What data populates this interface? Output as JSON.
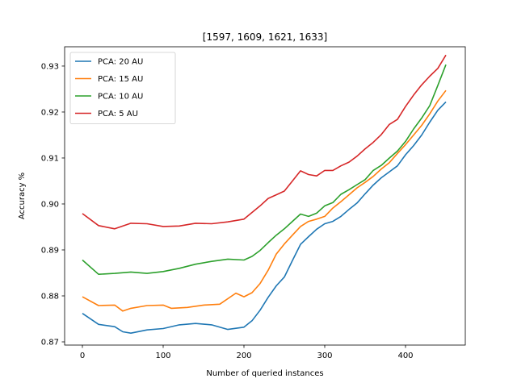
{
  "chart_data": {
    "type": "line",
    "title": "[1597, 1609, 1621, 1633]",
    "xlabel": "Number of queried instances",
    "ylabel": "Accuracy %",
    "xlim": [
      -22,
      474
    ],
    "ylim": [
      0.8693,
      0.9342
    ],
    "xticks": [
      0,
      100,
      200,
      300,
      400
    ],
    "yticks": [
      0.87,
      0.88,
      0.89,
      0.9,
      0.91,
      0.92,
      0.93
    ],
    "ytick_labels": [
      "0.87",
      "0.88",
      "0.89",
      "0.90",
      "0.91",
      "0.92",
      "0.93"
    ],
    "grid": false,
    "legend_position": "upper left",
    "series": [
      {
        "name": "PCA: 20 AU",
        "color": "#1f77b4",
        "points": [
          [
            0,
            0.8762
          ],
          [
            20,
            0.8738
          ],
          [
            40,
            0.8733
          ],
          [
            50,
            0.8722
          ],
          [
            60,
            0.8719
          ],
          [
            80,
            0.8726
          ],
          [
            100,
            0.8729
          ],
          [
            120,
            0.8737
          ],
          [
            140,
            0.874
          ],
          [
            160,
            0.8737
          ],
          [
            180,
            0.8727
          ],
          [
            200,
            0.8732
          ],
          [
            210,
            0.8746
          ],
          [
            220,
            0.8769
          ],
          [
            230,
            0.8797
          ],
          [
            240,
            0.8822
          ],
          [
            250,
            0.8841
          ],
          [
            260,
            0.8877
          ],
          [
            270,
            0.8912
          ],
          [
            280,
            0.8929
          ],
          [
            290,
            0.8945
          ],
          [
            300,
            0.8957
          ],
          [
            310,
            0.8962
          ],
          [
            320,
            0.8973
          ],
          [
            330,
            0.8988
          ],
          [
            340,
            0.9002
          ],
          [
            350,
            0.9022
          ],
          [
            360,
            0.9041
          ],
          [
            370,
            0.9057
          ],
          [
            380,
            0.907
          ],
          [
            390,
            0.9083
          ],
          [
            400,
            0.9107
          ],
          [
            410,
            0.9127
          ],
          [
            420,
            0.915
          ],
          [
            430,
            0.9178
          ],
          [
            440,
            0.9204
          ],
          [
            450,
            0.9222
          ]
        ]
      },
      {
        "name": "PCA: 15 AU",
        "color": "#ff7f0e",
        "points": [
          [
            0,
            0.8798
          ],
          [
            20,
            0.8779
          ],
          [
            40,
            0.878
          ],
          [
            50,
            0.8767
          ],
          [
            60,
            0.8773
          ],
          [
            80,
            0.8779
          ],
          [
            100,
            0.878
          ],
          [
            110,
            0.8773
          ],
          [
            130,
            0.8775
          ],
          [
            150,
            0.878
          ],
          [
            170,
            0.8782
          ],
          [
            190,
            0.8806
          ],
          [
            200,
            0.8798
          ],
          [
            210,
            0.8807
          ],
          [
            220,
            0.8827
          ],
          [
            230,
            0.8856
          ],
          [
            240,
            0.8891
          ],
          [
            250,
            0.8913
          ],
          [
            260,
            0.8932
          ],
          [
            270,
            0.8951
          ],
          [
            280,
            0.8962
          ],
          [
            290,
            0.8967
          ],
          [
            300,
            0.8973
          ],
          [
            310,
            0.8991
          ],
          [
            320,
            0.9005
          ],
          [
            330,
            0.902
          ],
          [
            340,
            0.9035
          ],
          [
            350,
            0.9047
          ],
          [
            360,
            0.906
          ],
          [
            370,
            0.9076
          ],
          [
            380,
            0.909
          ],
          [
            390,
            0.911
          ],
          [
            400,
            0.9129
          ],
          [
            410,
            0.915
          ],
          [
            420,
            0.9171
          ],
          [
            430,
            0.9196
          ],
          [
            440,
            0.9224
          ],
          [
            450,
            0.9247
          ]
        ]
      },
      {
        "name": "PCA: 10 AU",
        "color": "#2ca02c",
        "points": [
          [
            0,
            0.8878
          ],
          [
            20,
            0.8847
          ],
          [
            40,
            0.8849
          ],
          [
            60,
            0.8852
          ],
          [
            80,
            0.8849
          ],
          [
            100,
            0.8853
          ],
          [
            120,
            0.886
          ],
          [
            140,
            0.8869
          ],
          [
            160,
            0.8875
          ],
          [
            180,
            0.888
          ],
          [
            200,
            0.8878
          ],
          [
            210,
            0.8886
          ],
          [
            220,
            0.8899
          ],
          [
            230,
            0.8916
          ],
          [
            240,
            0.8932
          ],
          [
            250,
            0.8946
          ],
          [
            260,
            0.8962
          ],
          [
            270,
            0.8978
          ],
          [
            280,
            0.8973
          ],
          [
            290,
            0.898
          ],
          [
            300,
            0.8996
          ],
          [
            310,
            0.9003
          ],
          [
            320,
            0.9021
          ],
          [
            330,
            0.9031
          ],
          [
            340,
            0.9042
          ],
          [
            350,
            0.9053
          ],
          [
            360,
            0.9073
          ],
          [
            370,
            0.9084
          ],
          [
            380,
            0.91
          ],
          [
            390,
            0.9115
          ],
          [
            400,
            0.9136
          ],
          [
            410,
            0.9163
          ],
          [
            420,
            0.9187
          ],
          [
            430,
            0.9214
          ],
          [
            440,
            0.9258
          ],
          [
            450,
            0.9303
          ]
        ]
      },
      {
        "name": "PCA: 5 AU",
        "color": "#d62728",
        "points": [
          [
            0,
            0.8979
          ],
          [
            20,
            0.8953
          ],
          [
            40,
            0.8946
          ],
          [
            60,
            0.8958
          ],
          [
            80,
            0.8957
          ],
          [
            100,
            0.8951
          ],
          [
            120,
            0.8952
          ],
          [
            140,
            0.8958
          ],
          [
            160,
            0.8957
          ],
          [
            180,
            0.8961
          ],
          [
            200,
            0.8967
          ],
          [
            220,
            0.8996
          ],
          [
            230,
            0.9012
          ],
          [
            240,
            0.902
          ],
          [
            250,
            0.9028
          ],
          [
            260,
            0.905
          ],
          [
            270,
            0.9072
          ],
          [
            280,
            0.9064
          ],
          [
            290,
            0.9061
          ],
          [
            300,
            0.9073
          ],
          [
            310,
            0.9073
          ],
          [
            320,
            0.9083
          ],
          [
            330,
            0.9091
          ],
          [
            340,
            0.9104
          ],
          [
            350,
            0.912
          ],
          [
            360,
            0.9134
          ],
          [
            370,
            0.9151
          ],
          [
            380,
            0.9173
          ],
          [
            390,
            0.9184
          ],
          [
            400,
            0.9212
          ],
          [
            410,
            0.9237
          ],
          [
            420,
            0.9259
          ],
          [
            430,
            0.9278
          ],
          [
            440,
            0.9295
          ],
          [
            450,
            0.9324
          ]
        ]
      }
    ]
  }
}
